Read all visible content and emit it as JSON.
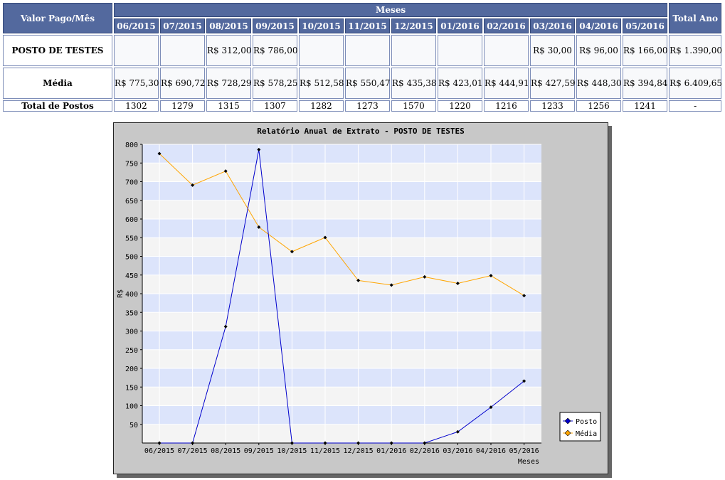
{
  "table": {
    "header_label": "Valor Pago/Mês",
    "months_label": "Meses",
    "total_label": "Total Ano",
    "months": [
      "06/2015",
      "07/2015",
      "08/2015",
      "09/2015",
      "10/2015",
      "11/2015",
      "12/2015",
      "01/2016",
      "02/2016",
      "03/2016",
      "04/2016",
      "05/2016"
    ],
    "rows": [
      {
        "label": "POSTO DE TESTES",
        "values": [
          "",
          "",
          "R$ 312,00",
          "R$ 786,00",
          "",
          "",
          "",
          "",
          "",
          "R$ 30,00",
          "R$ 96,00",
          "R$ 166,00"
        ],
        "total": "R$ 1.390,00"
      },
      {
        "label": "Média",
        "values": [
          "R$ 775,30",
          "R$ 690,72",
          "R$ 728,29",
          "R$ 578,25",
          "R$ 512,58",
          "R$ 550,47",
          "R$ 435,38",
          "R$ 423,01",
          "R$ 444,91",
          "R$ 427,59",
          "R$ 448,30",
          "R$ 394,84"
        ],
        "total": "R$ 6.409,65"
      },
      {
        "label": "Total de Postos",
        "values": [
          "1302",
          "1279",
          "1315",
          "1307",
          "1282",
          "1273",
          "1570",
          "1220",
          "1216",
          "1233",
          "1256",
          "1241"
        ],
        "total": "-"
      }
    ]
  },
  "chart_data": {
    "type": "line",
    "title": "Relatório Anual de Extrato - POSTO DE TESTES",
    "xlabel": "Meses",
    "ylabel": "R$",
    "categories": [
      "06/2015",
      "07/2015",
      "08/2015",
      "09/2015",
      "10/2015",
      "11/2015",
      "12/2015",
      "01/2016",
      "02/2016",
      "03/2016",
      "04/2016",
      "05/2016"
    ],
    "series": [
      {
        "name": "Posto",
        "values": [
          0,
          0,
          312,
          786,
          0,
          0,
          0,
          0,
          0,
          30,
          96,
          166
        ],
        "color": "#0000cc"
      },
      {
        "name": "Média",
        "values": [
          775.3,
          690.72,
          728.29,
          578.25,
          512.58,
          550.47,
          435.38,
          423.01,
          444.91,
          427.59,
          448.3,
          394.84
        ],
        "color": "#ffa500"
      }
    ],
    "ylim": [
      0,
      800
    ],
    "yticks": [
      50,
      100,
      150,
      200,
      250,
      300,
      350,
      400,
      450,
      500,
      550,
      600,
      650,
      700,
      750,
      800
    ],
    "grid": true,
    "legend_position": "bottom-right",
    "colors": {
      "band_a": "#dce4fb",
      "band_b": "#f4f4f4",
      "frame": "#c8c8c8"
    }
  }
}
